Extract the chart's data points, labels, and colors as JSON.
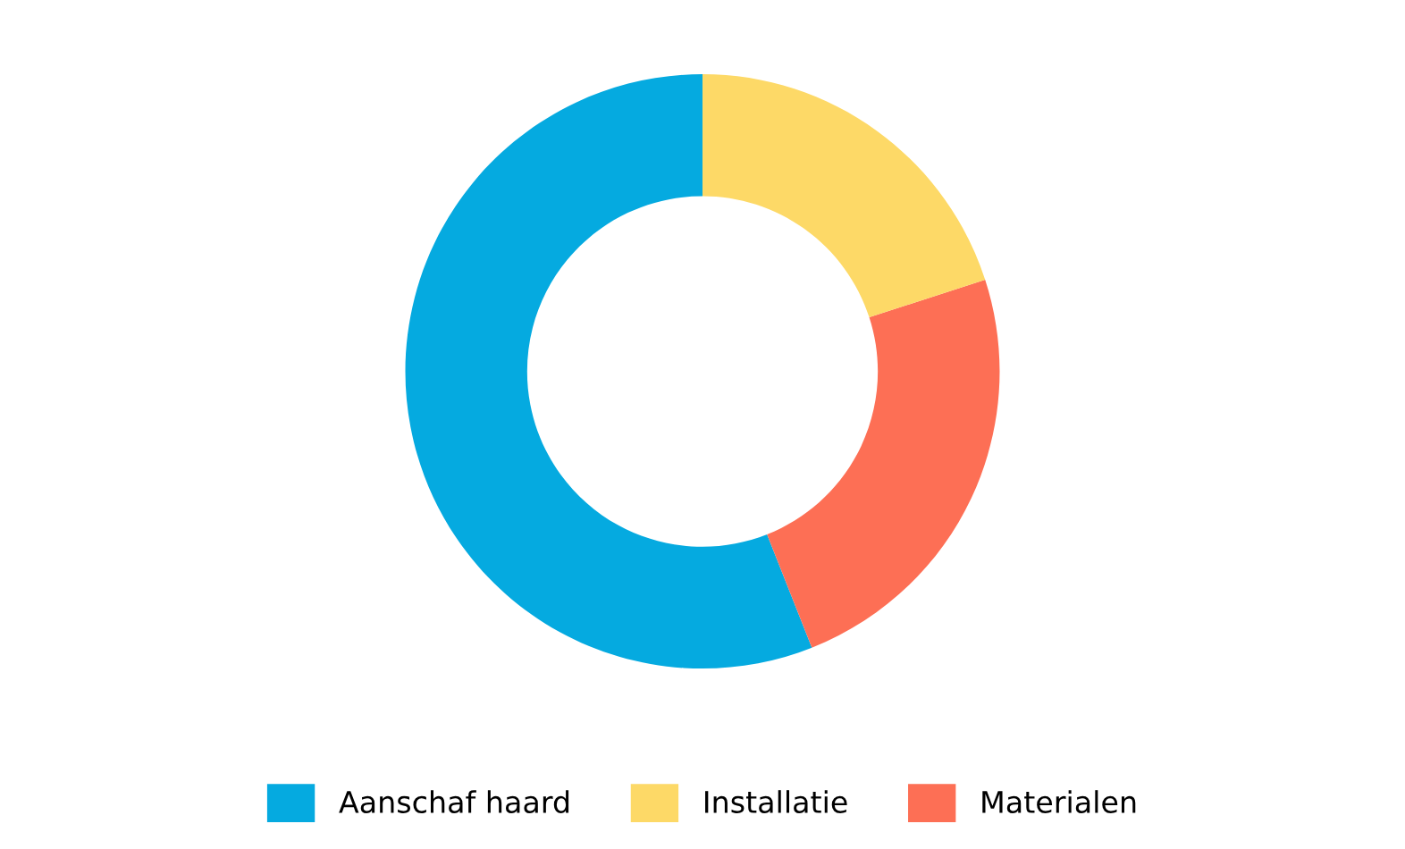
{
  "chart_data": {
    "type": "donut",
    "categories": [
      "Aanschaf haard",
      "Installatie",
      "Materialen"
    ],
    "values": [
      56,
      20,
      24
    ],
    "colors": [
      "#05aae0",
      "#fdd967",
      "#fd6f55"
    ],
    "legend": "bottom"
  }
}
